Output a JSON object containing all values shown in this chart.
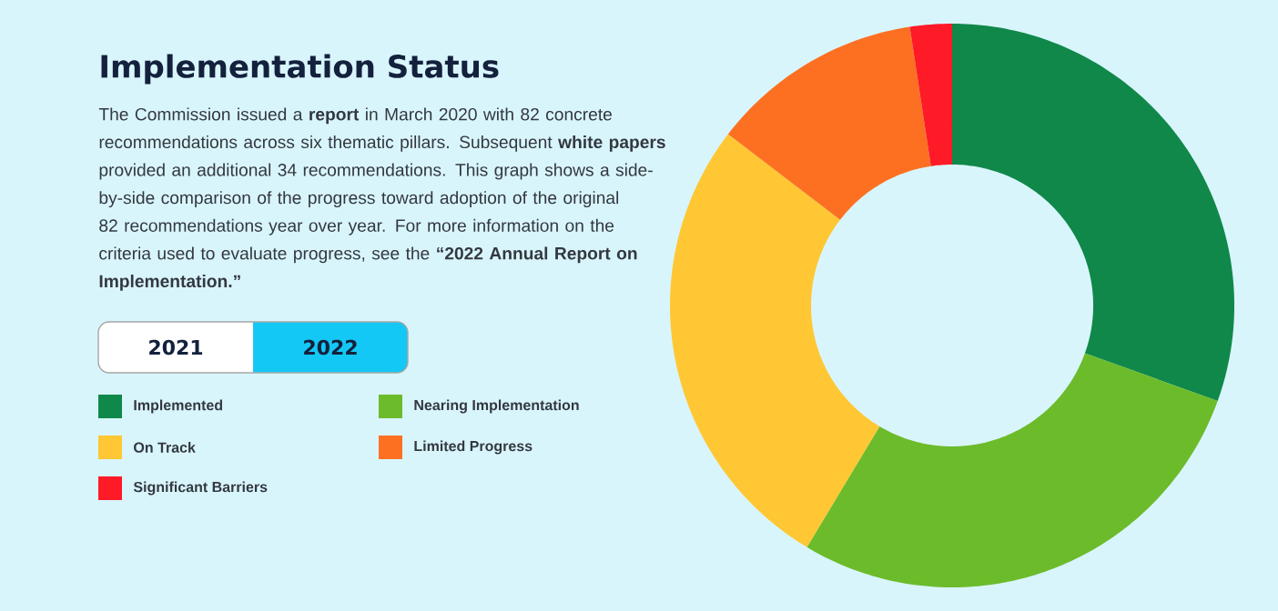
{
  "chart_data": {
    "type": "donut",
    "title": "Implementation Status",
    "subtitle": "The Commission issued a **report** in March 2020 with 82 concrete recommendations across six thematic pillars. Subsequent **white papers** provided an additional 34 recommendations. This graph shows a side-by-side comparison of the progress toward adoption of the original 82 recommendations year over year. For more information on the criteria used to evaluate progress, see the **“2022 Annual Report on Implementation.”**",
    "annotations": [
      "2021",
      "2022"
    ],
    "categories": [
      "Implemented",
      "Nearing Implementation",
      "On Track",
      "Limited Progress",
      "Significant Barriers"
    ],
    "values": [
      30.5,
      28.1,
      26.8,
      12.2,
      2.4
    ],
    "colors": [
      "#10884a",
      "#6cbb2b",
      "#ffc733",
      "#fd7022",
      "#fe1a27"
    ],
    "legend": "left"
  }
}
